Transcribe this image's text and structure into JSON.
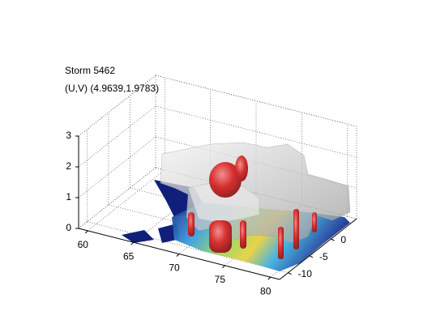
{
  "chart_data": {
    "type": "isosurface3d",
    "title": "Storm 5462",
    "subtitle": "(U,V) (4.9639,1.9783)",
    "xlim": [
      59,
      81
    ],
    "xticks": [
      60,
      65,
      70,
      75,
      80
    ],
    "ylim": [
      -12,
      6
    ],
    "yticks": [
      -10,
      -5,
      0
    ],
    "zlim": [
      0,
      3
    ],
    "zticks": [
      0,
      1,
      2,
      3
    ],
    "grid": true
  }
}
